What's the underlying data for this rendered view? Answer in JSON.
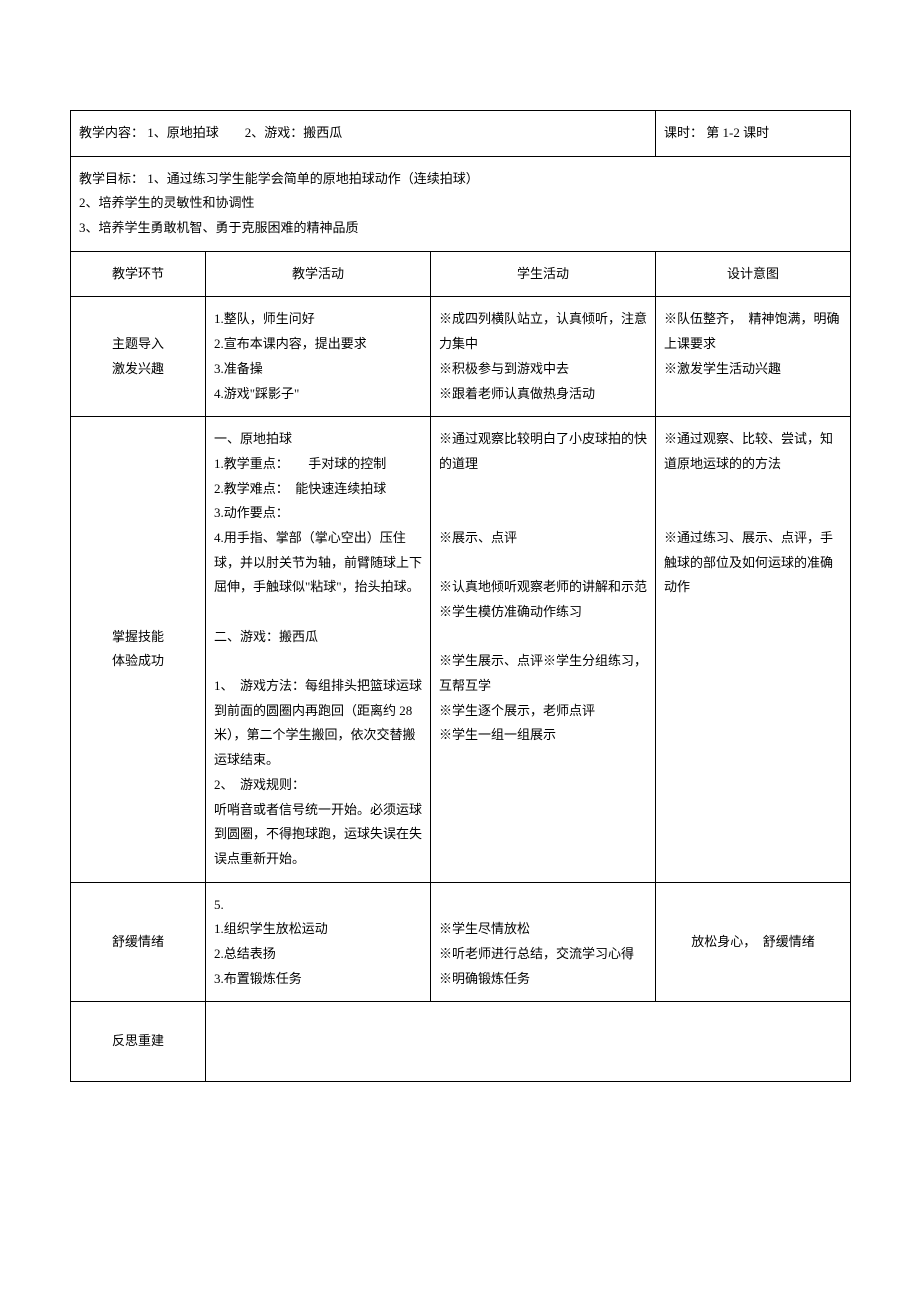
{
  "meta": {
    "content_label": "教学内容：",
    "content_text": "1、原地拍球　　2、游戏：搬西瓜",
    "period_label": "课时：",
    "period_text": "第 1-2 课时"
  },
  "goals": {
    "label": "教学目标：",
    "line1": "1、通过练习学生能学会简单的原地拍球动作（连续拍球）",
    "line2": "2、培养学生的灵敏性和协调性",
    "line3": "3、培养学生勇敢机智、勇于克服困难的精神品质"
  },
  "headers": {
    "col1": "教学环节",
    "col2": "教学活动",
    "col3": "学生活动",
    "col4": "设计意图"
  },
  "row1": {
    "phase_line1": "主题导入",
    "phase_line2": "激发兴趣",
    "activity": {
      "l1": "1.整队，师生问好",
      "l2": "2.宣布本课内容，提出要求",
      "l3": "3.准备操",
      "l4": "4.游戏\"踩影子\""
    },
    "student": {
      "l1": "※成四列横队站立，认真倾听，注意力集中",
      "l2": "※积极参与到游戏中去",
      "l3": "※跟着老师认真做热身活动"
    },
    "intent": {
      "l1": "※队伍整齐，　精神饱满，明确上课要求",
      "l2": "※激发学生活动兴趣"
    }
  },
  "row2": {
    "phase_line1": "掌握技能",
    "phase_line2": "体验成功",
    "activity": {
      "l1": "一、原地拍球",
      "l2": "1.教学重点：　　手对球的控制",
      "l3": "2.教学难点：　能快速连续拍球",
      "l4": "3.动作要点：",
      "l5": "4.用手指、掌部（掌心空出）压住球，并以肘关节为轴，前臂随球上下屈伸，手触球似\"粘球\"，抬头拍球。",
      "l6": "二、游戏：搬西瓜",
      "l7": "1、　游戏方法：每组排头把篮球运球到前面的圆圈内再跑回（距离约 28 米），第二个学生搬回，依次交替搬运球结束。",
      "l8": "2、　游戏规则：",
      "l9": "听哨音或者信号统一开始。必须运球到圆圈，不得抱球跑，运球失误在失误点重新开始。"
    },
    "student": {
      "l1": "※通过观察比较明白了小皮球拍的快的道理",
      "l2": "※展示、点评",
      "l3": "※认真地倾听观察老师的讲解和示范※学生模仿准确动作练习",
      "l4": "※学生展示、点评※学生分组练习，互帮互学",
      "l5": "※学生逐个展示，老师点评",
      "l6": "※学生一组一组展示"
    },
    "intent": {
      "l1": "※通过观察、比较、尝试，知道原地运球的的方法",
      "l2": "※通过练习、展示、点评，手触球的部位及如何运球的准确动作"
    }
  },
  "row3": {
    "phase": "舒缓情绪",
    "activity": {
      "l0": "5.",
      "l1": "1.组织学生放松运动",
      "l2": "2.总结表扬",
      "l3": "3.布置锻炼任务"
    },
    "student": {
      "l1": "※学生尽情放松",
      "l2": "※听老师进行总结，交流学习心得",
      "l3": "※明确锻炼任务"
    },
    "intent": "放松身心，　舒缓情绪"
  },
  "row4": {
    "phase": "反思重建"
  }
}
